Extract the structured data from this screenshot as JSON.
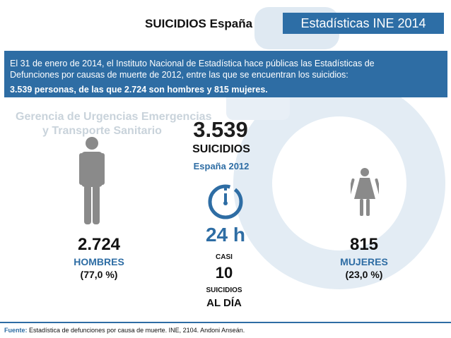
{
  "header": {
    "title": "SUICIDIOS España",
    "tag": "Estadísticas INE 2014"
  },
  "watermark": {
    "line1": "Gerencia de Urgencias Emergencias",
    "line2": "y Transporte Sanitario"
  },
  "banner": {
    "line1": "El 31 de enero de 2014, el Instituto  Nacional de Estadística hace públicas las Estadísticas de",
    "line2": "Defunciones por causas de muerte de 2012, entre las que se encuentran los suicidios:",
    "line3": "3.539 personas, de las que 2.724 son hombres y 815 mujeres."
  },
  "total": {
    "value": "3.539",
    "label": "SUICIDIOS",
    "sublabel": "España 2012"
  },
  "men": {
    "icon": "man-icon",
    "value": "2.724",
    "label": "HOMBRES",
    "percent": "(77,0 %)"
  },
  "women": {
    "icon": "woman-icon",
    "value": "815",
    "label": "MUJERES",
    "percent": "(23,0 %)"
  },
  "daily": {
    "icon": "clock-24h-icon",
    "clock_text": "24 h",
    "prefix": "CASI",
    "value": "10",
    "label1": "SUICIDIOS",
    "label2": "AL DÍA"
  },
  "footer": {
    "label": "Fuente:",
    "text": " Estadística de defunciones por causa de muerte. INE, 2104. Andoni Anseán."
  },
  "colors": {
    "accent": "#2e6da4",
    "icon_gray": "#8a8a8a",
    "background_logo": "#d6e4ef"
  }
}
